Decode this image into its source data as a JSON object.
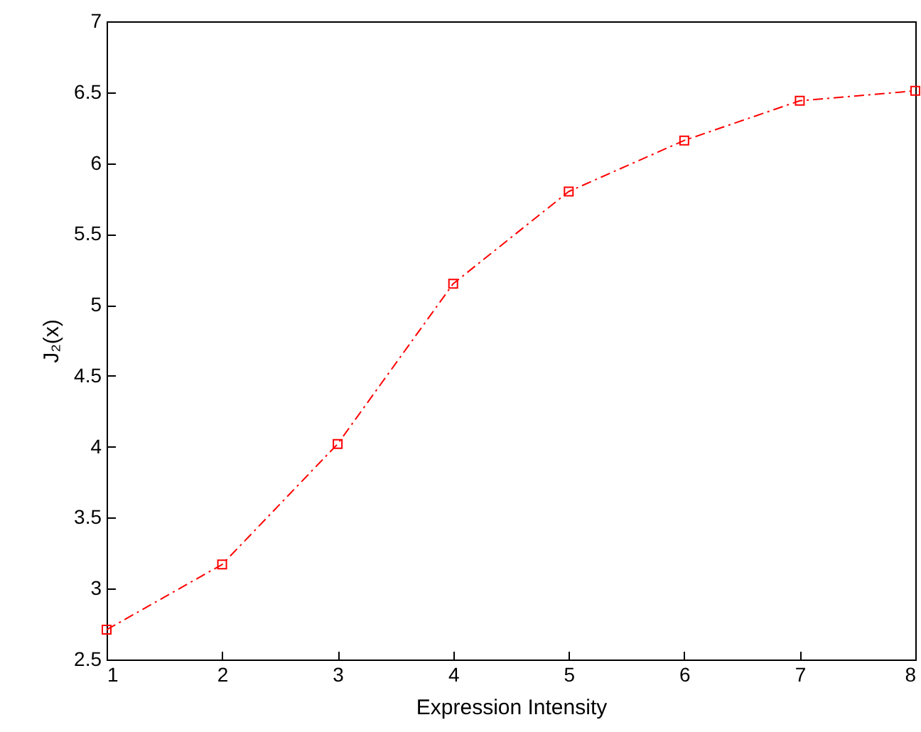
{
  "chart_data": {
    "type": "line",
    "xlabel": "Expression Intensity",
    "ylabel": "J₂(x)",
    "x": [
      1,
      2,
      3,
      4,
      5,
      6,
      7,
      8
    ],
    "series": [
      {
        "color": "#ff0000",
        "values": [
          2.71,
          3.17,
          4.02,
          5.15,
          5.8,
          6.16,
          6.44,
          6.51
        ]
      }
    ],
    "xlim": [
      1,
      8
    ],
    "xticks": [
      1,
      2,
      3,
      4,
      5,
      6,
      7,
      8
    ],
    "ylim": [
      2.5,
      7
    ],
    "yticks": [
      2.5,
      3,
      3.5,
      4,
      4.5,
      5,
      5.5,
      6,
      6.5,
      7
    ],
    "grid": false,
    "marker": "square",
    "line_style": "dashed"
  }
}
